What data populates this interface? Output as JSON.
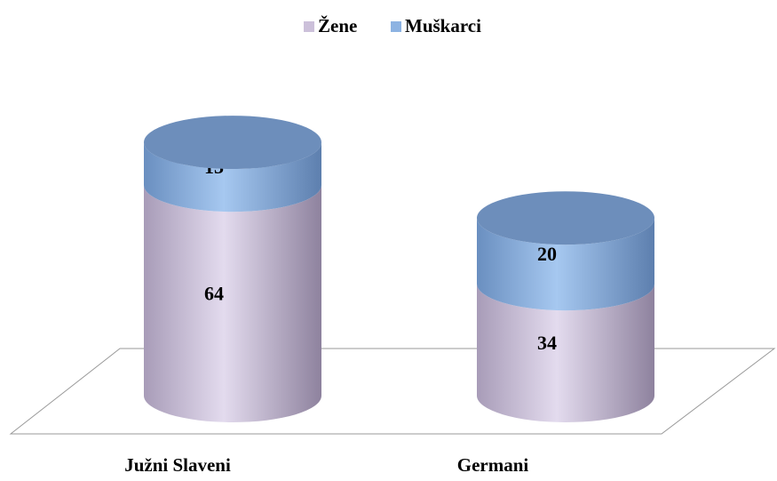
{
  "chart_data": {
    "type": "bar3d_stacked_cylinder",
    "categories": [
      "Južni Slaveni",
      "Germani"
    ],
    "series": [
      {
        "name": "Žene",
        "color": "#ccc0da",
        "values": [
          64,
          34
        ]
      },
      {
        "name": "Muškarci",
        "color": "#8db3e2",
        "values": [
          13,
          20
        ]
      }
    ],
    "legend": "top"
  }
}
